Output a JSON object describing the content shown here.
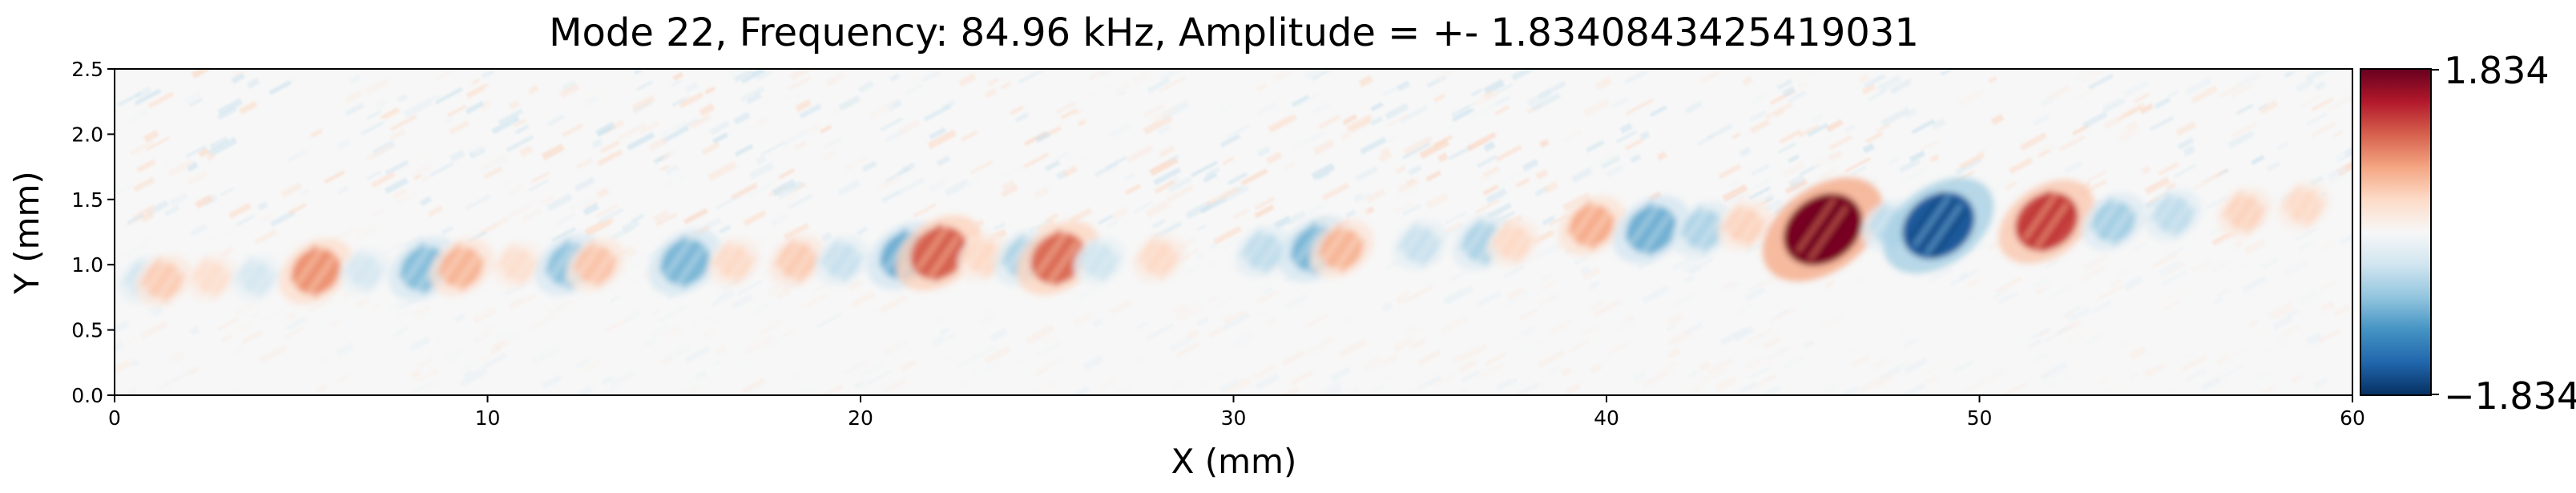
{
  "chart_data": {
    "type": "heatmap",
    "title": "Mode 22, Frequency: 84.96 kHz, Amplitude = +- 1.8340843425419031",
    "xlabel": "X (mm)",
    "ylabel": "Y (mm)",
    "xlim": [
      0,
      60
    ],
    "ylim": [
      0,
      2.5
    ],
    "xticks": [
      0,
      10,
      20,
      30,
      40,
      50,
      60
    ],
    "xtick_labels": [
      "0",
      "10",
      "20",
      "30",
      "40",
      "50",
      "60"
    ],
    "yticks": [
      0.0,
      0.5,
      1.0,
      1.5,
      2.0,
      2.5
    ],
    "ytick_labels": [
      "0.0",
      "0.5",
      "1.0",
      "1.5",
      "2.0",
      "2.5"
    ],
    "colormap": "RdBu_r",
    "colorbar": {
      "min": -1.834,
      "max": 1.834,
      "min_label": "−1.834",
      "max_label": "1.834"
    },
    "colors": {
      "high": "#67001f",
      "mid": "#f7f7f7",
      "low": "#053061"
    },
    "features": [
      {
        "x": 0.8,
        "y": 0.88,
        "value": -0.35
      },
      {
        "x": 1.3,
        "y": 0.88,
        "value": 0.45
      },
      {
        "x": 2.6,
        "y": 0.9,
        "value": 0.3
      },
      {
        "x": 3.8,
        "y": 0.9,
        "value": -0.3
      },
      {
        "x": 5.4,
        "y": 0.95,
        "value": 0.8
      },
      {
        "x": 6.7,
        "y": 0.95,
        "value": -0.3
      },
      {
        "x": 8.3,
        "y": 0.97,
        "value": -0.75
      },
      {
        "x": 9.3,
        "y": 0.98,
        "value": 0.6
      },
      {
        "x": 10.8,
        "y": 1.0,
        "value": 0.3
      },
      {
        "x": 12.2,
        "y": 1.0,
        "value": -0.7
      },
      {
        "x": 12.9,
        "y": 1.0,
        "value": 0.5
      },
      {
        "x": 15.3,
        "y": 1.02,
        "value": -0.8
      },
      {
        "x": 16.6,
        "y": 1.02,
        "value": 0.35
      },
      {
        "x": 18.3,
        "y": 1.03,
        "value": 0.45
      },
      {
        "x": 19.5,
        "y": 1.03,
        "value": -0.4
      },
      {
        "x": 21.2,
        "y": 1.07,
        "value": -0.85
      },
      {
        "x": 22.1,
        "y": 1.09,
        "value": 1.05
      },
      {
        "x": 23.3,
        "y": 1.06,
        "value": 0.35
      },
      {
        "x": 24.4,
        "y": 1.05,
        "value": -0.55
      },
      {
        "x": 25.3,
        "y": 1.05,
        "value": 1.0
      },
      {
        "x": 26.4,
        "y": 1.03,
        "value": -0.35
      },
      {
        "x": 28.0,
        "y": 1.05,
        "value": 0.35
      },
      {
        "x": 30.8,
        "y": 1.1,
        "value": -0.45
      },
      {
        "x": 32.2,
        "y": 1.12,
        "value": -0.8
      },
      {
        "x": 32.9,
        "y": 1.12,
        "value": 0.6
      },
      {
        "x": 35.0,
        "y": 1.15,
        "value": -0.4
      },
      {
        "x": 36.7,
        "y": 1.17,
        "value": -0.55
      },
      {
        "x": 37.5,
        "y": 1.17,
        "value": 0.35
      },
      {
        "x": 39.6,
        "y": 1.3,
        "value": 0.65
      },
      {
        "x": 41.2,
        "y": 1.27,
        "value": -0.85
      },
      {
        "x": 42.6,
        "y": 1.27,
        "value": -0.55
      },
      {
        "x": 43.7,
        "y": 1.3,
        "value": 0.4
      },
      {
        "x": 45.8,
        "y": 1.27,
        "value": 1.75
      },
      {
        "x": 47.6,
        "y": 1.3,
        "value": -0.45
      },
      {
        "x": 48.9,
        "y": 1.3,
        "value": -1.55
      },
      {
        "x": 51.8,
        "y": 1.33,
        "value": 1.25
      },
      {
        "x": 53.6,
        "y": 1.33,
        "value": -0.6
      },
      {
        "x": 55.2,
        "y": 1.38,
        "value": -0.45
      },
      {
        "x": 57.1,
        "y": 1.4,
        "value": 0.4
      },
      {
        "x": 58.7,
        "y": 1.45,
        "value": 0.35
      }
    ]
  }
}
